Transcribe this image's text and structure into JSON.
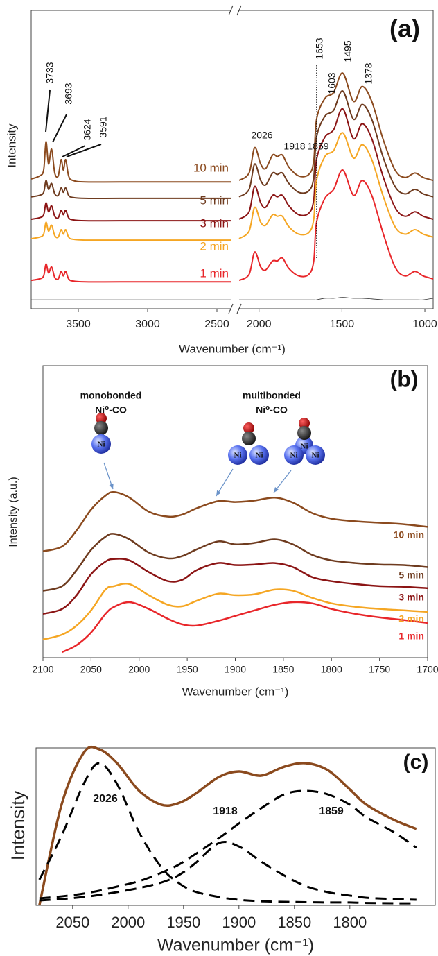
{
  "chart_data": [
    {
      "type": "line",
      "panel_label": "(a)",
      "y_label": "Intensity",
      "x_label": "Wavenumber (cm⁻¹)",
      "xlim": [
        3840,
        950
      ],
      "xbreak": [
        2400,
        2120
      ],
      "ylim": [
        0,
        100
      ],
      "xticks": [
        3500,
        3000,
        2500,
        2000,
        1500,
        1000
      ],
      "peaks": [
        3733,
        3693,
        3624,
        3591,
        2026,
        1918,
        1859,
        1653,
        1603,
        1495,
        1378
      ],
      "x": [
        3840,
        3780,
        3750,
        3733,
        3715,
        3693,
        3670,
        3645,
        3624,
        3608,
        3591,
        3570,
        3540,
        3450,
        3200,
        2800,
        2400,
        2260,
        2120,
        2060,
        2026,
        1990,
        1960,
        1918,
        1890,
        1859,
        1820,
        1760,
        1700,
        1670,
        1653,
        1603,
        1550,
        1495,
        1430,
        1378,
        1320,
        1250,
        1180,
        1120,
        1060,
        1010,
        950
      ],
      "series": [
        {
          "name": "10 min",
          "color": "#8b4a1e",
          "values": [
            43.5,
            44.5,
            46.5,
            56,
            48.5,
            53.5,
            45.5,
            44.5,
            50,
            46.5,
            50,
            44.5,
            43,
            42.5,
            42.5,
            42.5,
            42.5,
            null,
            43,
            45.5,
            54,
            48.5,
            47,
            51.5,
            51,
            51.5,
            47.5,
            44.5,
            45,
            49.5,
            63.5,
            70.5,
            72.5,
            79,
            69.5,
            74.5,
            69.5,
            56.5,
            46.5,
            44,
            45.5,
            44,
            43
          ]
        },
        {
          "name": "5 min",
          "color": "#6e3b1f",
          "values": [
            37.5,
            38,
            39,
            43,
            40,
            42,
            38.5,
            38,
            40.5,
            39,
            40.5,
            38,
            37.3,
            37,
            37,
            37,
            37,
            null,
            37.5,
            40,
            48.5,
            43,
            41.5,
            45.5,
            45,
            45.5,
            42,
            39,
            39.5,
            44,
            57.5,
            64.5,
            66.5,
            73,
            63.5,
            68.5,
            63.5,
            50.5,
            41,
            38.5,
            40,
            38.5,
            37.5
          ]
        },
        {
          "name": "3 min",
          "color": "#8b1414",
          "values": [
            30,
            30.5,
            31.5,
            35.5,
            32.5,
            34.5,
            31,
            30.5,
            33,
            31.5,
            33,
            30.5,
            29.8,
            29.5,
            29.5,
            29.5,
            29.5,
            null,
            30,
            32.5,
            41,
            35.5,
            34,
            38,
            37.5,
            38,
            34.5,
            31.5,
            32,
            36.5,
            50,
            57.5,
            60,
            67,
            57,
            62,
            57,
            44,
            34,
            31,
            32.5,
            31,
            30
          ]
        },
        {
          "name": "2 min",
          "color": "#f5a623",
          "values": [
            23.5,
            24,
            25,
            29,
            26,
            28,
            24.5,
            24,
            26.5,
            25,
            26.5,
            24,
            23.3,
            23,
            23,
            23,
            23,
            null,
            23.5,
            26,
            34,
            29,
            28,
            31.5,
            31,
            31,
            27.5,
            25,
            25.5,
            30,
            43,
            51,
            53,
            59,
            50.5,
            55,
            50,
            37.5,
            27.5,
            25,
            26.5,
            25,
            24
          ]
        },
        {
          "name": "1 min",
          "color": "#e8262a",
          "values": [
            9.5,
            10,
            11,
            15,
            12,
            14,
            10.5,
            10,
            12.5,
            11,
            12.5,
            10,
            9.3,
            9,
            9,
            9,
            9,
            null,
            9.5,
            11.5,
            19,
            14,
            13,
            16,
            16,
            17,
            13.5,
            11,
            11.5,
            16,
            29,
            37,
            40,
            46.5,
            38,
            43,
            38,
            25,
            14,
            11,
            12.5,
            11,
            10
          ]
        },
        {
          "color": "#333333",
          "values": [
            3,
            3,
            3,
            3,
            3,
            3,
            3,
            3,
            3,
            3,
            3,
            3,
            3,
            3,
            3,
            3,
            3,
            null,
            3,
            3,
            3,
            3,
            3,
            3,
            3,
            3,
            3,
            3,
            3,
            3,
            3,
            3.5,
            3.5,
            3.8,
            3.5,
            3.5,
            3.3,
            3,
            3,
            3,
            3,
            3,
            3.5
          ]
        }
      ]
    },
    {
      "type": "line",
      "panel_label": "(b)",
      "y_label": "Intensity (a.u.)",
      "x_label": "Wavenumber (cm⁻¹)",
      "xlim": [
        2100,
        1700
      ],
      "ylim": [
        0,
        100
      ],
      "xticks": [
        2100,
        2050,
        2000,
        1950,
        1900,
        1850,
        1800,
        1750,
        1700
      ],
      "annotations": [
        {
          "title": "monobonded",
          "species": "Ni⁰-CO"
        },
        {
          "title": "multibonded",
          "species": "Ni⁰-CO"
        }
      ],
      "atom_label": "Ni",
      "x": [
        2100,
        2080,
        2065,
        2050,
        2035,
        2026,
        2010,
        1990,
        1970,
        1955,
        1940,
        1918,
        1900,
        1880,
        1859,
        1840,
        1820,
        1800,
        1775,
        1750,
        1725,
        1700
      ],
      "series": [
        {
          "name": "10 min",
          "color": "#8b4a1e",
          "values": [
            36.4,
            38.1,
            43.6,
            50.7,
            55.5,
            56.7,
            54.8,
            50,
            48.3,
            49,
            51.2,
            53.6,
            53.3,
            53.8,
            54.8,
            53.1,
            49.5,
            47.6,
            46.7,
            46.2,
            45.7,
            44.8
          ]
        },
        {
          "name": "5 min",
          "color": "#6e3b1f",
          "values": [
            22.9,
            24.5,
            30,
            36.9,
            41.4,
            42.4,
            40.5,
            36,
            34,
            34.8,
            37.1,
            39.8,
            38.8,
            39.3,
            40.5,
            38.8,
            35.2,
            33.3,
            32.4,
            31.9,
            31.7,
            31
          ]
        },
        {
          "name": "3 min",
          "color": "#8b1414",
          "values": [
            15,
            16.7,
            21.4,
            28.6,
            32.9,
            33.8,
            33.3,
            29.3,
            26.2,
            26.7,
            30,
            32.4,
            31.7,
            31.9,
            32.4,
            31,
            27.6,
            26.2,
            25.2,
            24.5,
            24.3,
            23.8
          ]
        },
        {
          "name": "2 min",
          "color": "#f5a623",
          "values": [
            6.2,
            7.9,
            11,
            16.2,
            23.3,
            24.5,
            25.2,
            21.4,
            18.1,
            17.6,
            19.5,
            21.9,
            21.4,
            21.7,
            23.3,
            22.9,
            20.5,
            18.6,
            17.4,
            16.7,
            16.2,
            15.7
          ]
        },
        {
          "name": "1 min",
          "color": "#e8262a",
          "values": [
            null,
            1.9,
            4.3,
            8.6,
            15,
            17.4,
            19,
            16.7,
            13.3,
            11.4,
            11,
            12.6,
            14.3,
            16.2,
            18.1,
            19,
            18.6,
            16.7,
            15,
            13.8,
            12.9,
            11.9
          ]
        }
      ]
    },
    {
      "type": "line",
      "panel_label": "(c)",
      "y_label": "Intensity",
      "x_label": "Wavenumber (cm⁻¹)",
      "xlim": [
        2083,
        1723
      ],
      "ylim": [
        0,
        100
      ],
      "xticks": [
        2050,
        2000,
        1950,
        1900,
        1850,
        1800
      ],
      "peaks": [
        2026,
        1918,
        1859
      ],
      "x": [
        2080,
        2060,
        2040,
        2026,
        2010,
        1990,
        1970,
        1955,
        1940,
        1918,
        1900,
        1880,
        1859,
        1840,
        1820,
        1800,
        1785,
        1760,
        1740
      ],
      "series": [
        {
          "color": "#8b4a1e",
          "line_style": "solid",
          "values": [
            0,
            63.9,
            96.9,
            99.1,
            90.3,
            72.7,
            63.9,
            64.8,
            70.5,
            81.5,
            85,
            82.4,
            88.1,
            90.3,
            85.9,
            73.6,
            63.9,
            54.2,
            48.5
          ]
        },
        {
          "color": "#000000",
          "line_style": "dashed",
          "values": [
            16.3,
            44.1,
            77.1,
            90.3,
            77.1,
            46.3,
            24.2,
            14.5,
            8.8,
            5.3,
            3.5,
            2.6,
            2.2,
            2,
            1.8,
            1.8,
            1.5,
            1.3,
            1.3
          ]
        },
        {
          "color": "#000000",
          "line_style": "dashed",
          "values": [
            3.1,
            4,
            5.3,
            6.6,
            8.4,
            11,
            14.5,
            18.9,
            26.4,
            39.6,
            37.4,
            27.8,
            18.9,
            12.3,
            8.4,
            6.2,
            4.8,
            4,
            3.5
          ]
        },
        {
          "color": "#000000",
          "line_style": "dashed",
          "values": [
            4.4,
            5.7,
            7.5,
            9.3,
            11.9,
            15.4,
            20.7,
            25.6,
            32.2,
            42.7,
            52,
            61.7,
            70.5,
            72.7,
            70.5,
            63.9,
            55.9,
            46.3,
            36.6
          ]
        }
      ]
    }
  ]
}
